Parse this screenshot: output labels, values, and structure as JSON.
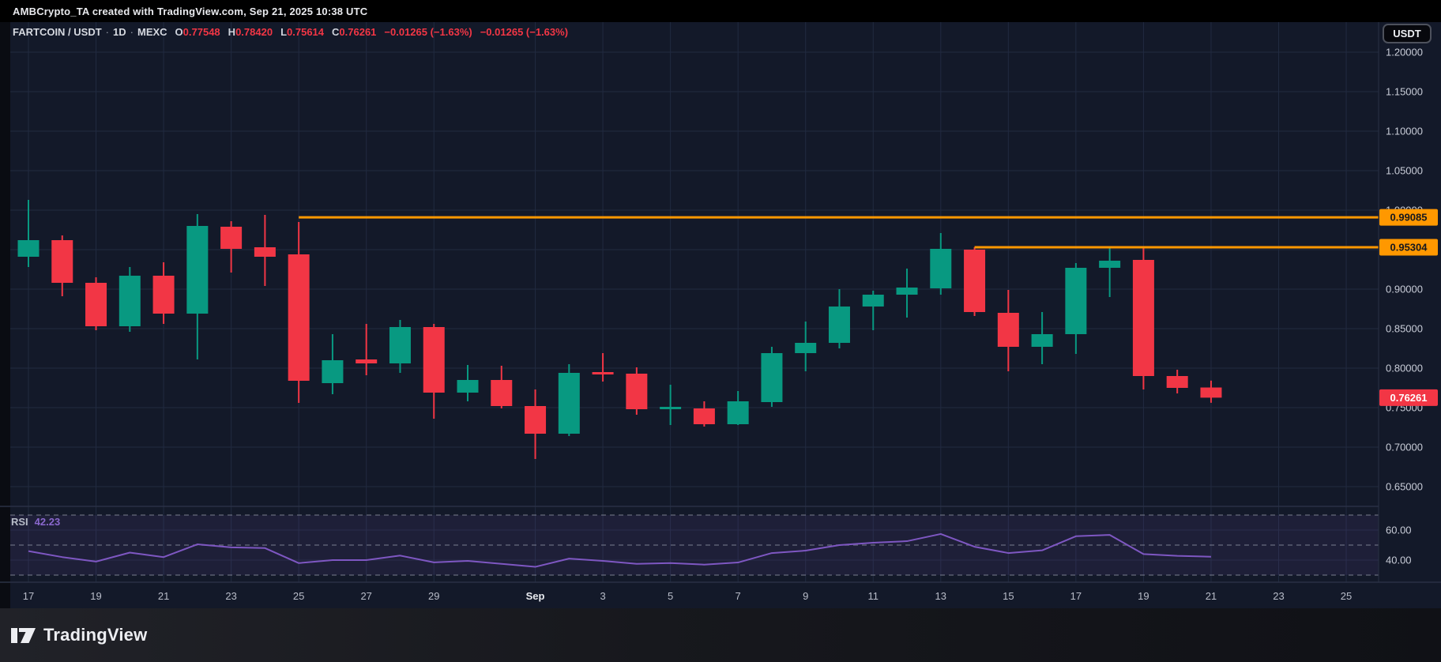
{
  "topbar": {
    "title": "AMBCrypto_TA created with TradingView.com, Sep 21, 2025 10:38 UTC"
  },
  "legend": {
    "pair": "FARTCOIN / USDT",
    "sep": "·",
    "interval": "1D",
    "exchange": "MEXC",
    "quotes": [
      {
        "label": "O",
        "value": "0.77548"
      },
      {
        "label": "H",
        "value": "0.78420"
      },
      {
        "label": "L",
        "value": "0.75614"
      },
      {
        "label": "C",
        "value": "0.76261"
      }
    ],
    "change": "−0.01265 (−1.63%)",
    "change_secondary": "−0.01265 (−1.63%)"
  },
  "axis_button": {
    "label": "USDT"
  },
  "rsi_legend": {
    "label": "RSI",
    "value": "42.23"
  },
  "footer": {
    "brand": "TradingView",
    "logo_icon": "tradingview-mark"
  },
  "colors": {
    "background": "#131929",
    "grid": "#212a40",
    "candle_up": "#089981",
    "candle_down": "#f23645",
    "ray_orange": "#ff9800",
    "rsi_purple": "#7e57c2",
    "rsi_band": "rgba(126,87,194,0.10)",
    "dashed_level": "#9094a2",
    "axis_text": "#c9cdd8",
    "time_text": "#b9bdc9",
    "last_price_bg": "#f23645",
    "separator": "#2a3145",
    "left_strip": "#0a0c12"
  },
  "chart_data": {
    "type": "candlestick+line",
    "title": "FARTCOIN / USDT · 1D · MEXC",
    "legend_position": "top-left",
    "grid": true,
    "price_pane": {
      "ylim": [
        0.63,
        1.22
      ],
      "gridline_prices": [
        1.2,
        1.15,
        1.1,
        1.05,
        1.0,
        0.95,
        0.9,
        0.85,
        0.8,
        0.75,
        0.7,
        0.65
      ],
      "axis_label_prices": [
        1.2,
        1.15,
        1.1,
        1.05,
        1.0,
        0.9,
        0.85,
        0.8,
        0.75,
        0.7,
        0.65
      ],
      "last_price": 0.76261,
      "horizontal_rays": [
        {
          "price": 0.99085,
          "start_date": "Aug 25",
          "start_index": 8
        },
        {
          "price": 0.95304,
          "start_date": "Sep 14",
          "start_index": 28
        }
      ],
      "candles": [
        {
          "date": "Aug 17",
          "o": 0.941,
          "h": 1.013,
          "l": 0.928,
          "c": 0.962
        },
        {
          "date": "Aug 18",
          "o": 0.962,
          "h": 0.968,
          "l": 0.891,
          "c": 0.908
        },
        {
          "date": "Aug 19",
          "o": 0.908,
          "h": 0.915,
          "l": 0.848,
          "c": 0.853
        },
        {
          "date": "Aug 20",
          "o": 0.853,
          "h": 0.928,
          "l": 0.846,
          "c": 0.917
        },
        {
          "date": "Aug 21",
          "o": 0.917,
          "h": 0.934,
          "l": 0.856,
          "c": 0.869
        },
        {
          "date": "Aug 22",
          "o": 0.869,
          "h": 0.995,
          "l": 0.811,
          "c": 0.98
        },
        {
          "date": "Aug 23",
          "o": 0.979,
          "h": 0.986,
          "l": 0.921,
          "c": 0.951
        },
        {
          "date": "Aug 24",
          "o": 0.953,
          "h": 0.994,
          "l": 0.904,
          "c": 0.941
        },
        {
          "date": "Aug 25",
          "o": 0.944,
          "h": 0.985,
          "l": 0.756,
          "c": 0.784
        },
        {
          "date": "Aug 26",
          "o": 0.781,
          "h": 0.843,
          "l": 0.767,
          "c": 0.81
        },
        {
          "date": "Aug 27",
          "o": 0.811,
          "h": 0.856,
          "l": 0.791,
          "c": 0.806
        },
        {
          "date": "Aug 28",
          "o": 0.806,
          "h": 0.861,
          "l": 0.794,
          "c": 0.852
        },
        {
          "date": "Aug 29",
          "o": 0.852,
          "h": 0.856,
          "l": 0.736,
          "c": 0.769
        },
        {
          "date": "Aug 30",
          "o": 0.769,
          "h": 0.804,
          "l": 0.758,
          "c": 0.785
        },
        {
          "date": "Aug 31",
          "o": 0.785,
          "h": 0.803,
          "l": 0.749,
          "c": 0.752
        },
        {
          "date": "Sep 1",
          "o": 0.752,
          "h": 0.773,
          "l": 0.685,
          "c": 0.717
        },
        {
          "date": "Sep 2",
          "o": 0.717,
          "h": 0.805,
          "l": 0.714,
          "c": 0.794
        },
        {
          "date": "Sep 3",
          "o": 0.795,
          "h": 0.819,
          "l": 0.783,
          "c": 0.793
        },
        {
          "date": "Sep 4",
          "o": 0.793,
          "h": 0.801,
          "l": 0.741,
          "c": 0.748
        },
        {
          "date": "Sep 5",
          "o": 0.749,
          "h": 0.779,
          "l": 0.728,
          "c": 0.751
        },
        {
          "date": "Sep 6",
          "o": 0.749,
          "h": 0.758,
          "l": 0.726,
          "c": 0.729
        },
        {
          "date": "Sep 7",
          "o": 0.729,
          "h": 0.771,
          "l": 0.728,
          "c": 0.758
        },
        {
          "date": "Sep 8",
          "o": 0.757,
          "h": 0.827,
          "l": 0.751,
          "c": 0.819
        },
        {
          "date": "Sep 9",
          "o": 0.819,
          "h": 0.859,
          "l": 0.796,
          "c": 0.832
        },
        {
          "date": "Sep 10",
          "o": 0.832,
          "h": 0.9,
          "l": 0.825,
          "c": 0.878
        },
        {
          "date": "Sep 11",
          "o": 0.878,
          "h": 0.898,
          "l": 0.848,
          "c": 0.893
        },
        {
          "date": "Sep 12",
          "o": 0.893,
          "h": 0.926,
          "l": 0.864,
          "c": 0.902
        },
        {
          "date": "Sep 13",
          "o": 0.901,
          "h": 0.971,
          "l": 0.893,
          "c": 0.951
        },
        {
          "date": "Sep 14",
          "o": 0.95,
          "h": 0.953,
          "l": 0.866,
          "c": 0.871
        },
        {
          "date": "Sep 15",
          "o": 0.87,
          "h": 0.899,
          "l": 0.796,
          "c": 0.827
        },
        {
          "date": "Sep 16",
          "o": 0.827,
          "h": 0.871,
          "l": 0.805,
          "c": 0.843
        },
        {
          "date": "Sep 17",
          "o": 0.843,
          "h": 0.933,
          "l": 0.818,
          "c": 0.927
        },
        {
          "date": "Sep 18",
          "o": 0.927,
          "h": 0.953,
          "l": 0.89,
          "c": 0.936
        },
        {
          "date": "Sep 19",
          "o": 0.937,
          "h": 0.952,
          "l": 0.773,
          "c": 0.79
        },
        {
          "date": "Sep 20",
          "o": 0.79,
          "h": 0.798,
          "l": 0.768,
          "c": 0.775
        },
        {
          "date": "Sep 21",
          "o": 0.77548,
          "h": 0.7842,
          "l": 0.75614,
          "c": 0.76261
        }
      ]
    },
    "rsi_pane": {
      "name": "RSI",
      "last_value": 42.23,
      "dashed_levels": [
        70,
        50,
        30
      ],
      "band": [
        30,
        70
      ],
      "axis_label_values": [
        60,
        40
      ],
      "values": [
        46,
        42,
        39,
        45,
        42,
        50.5,
        48.5,
        48,
        38,
        40,
        40,
        43,
        38.5,
        39.5,
        37.5,
        35.5,
        41,
        39.5,
        37.5,
        38,
        37,
        38.4,
        44.7,
        46.3,
        50,
        51.6,
        52.6,
        57.4,
        48.9,
        44.7,
        46.5,
        55.9,
        56.8,
        44,
        42.8,
        42.23
      ]
    },
    "time_axis": {
      "ticks": [
        {
          "label": "17",
          "day": 0
        },
        {
          "label": "19",
          "day": 2
        },
        {
          "label": "21",
          "day": 4
        },
        {
          "label": "23",
          "day": 6
        },
        {
          "label": "25",
          "day": 8
        },
        {
          "label": "27",
          "day": 10
        },
        {
          "label": "29",
          "day": 12
        },
        {
          "label": "Sep",
          "day": 15
        },
        {
          "label": "3",
          "day": 17
        },
        {
          "label": "5",
          "day": 19
        },
        {
          "label": "7",
          "day": 21
        },
        {
          "label": "9",
          "day": 23
        },
        {
          "label": "11",
          "day": 25
        },
        {
          "label": "13",
          "day": 27
        },
        {
          "label": "15",
          "day": 29
        },
        {
          "label": "17",
          "day": 31
        },
        {
          "label": "19",
          "day": 33
        },
        {
          "label": "21",
          "day": 35
        },
        {
          "label": "23",
          "day": 37
        },
        {
          "label": "25",
          "day": 39
        }
      ]
    }
  }
}
